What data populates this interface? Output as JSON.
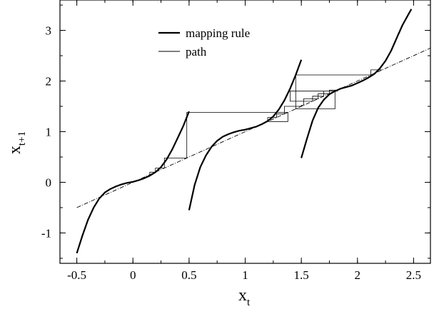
{
  "chart_data": {
    "type": "line",
    "xlabel": "x",
    "xlabel_sub": "t",
    "ylabel": "x",
    "ylabel_sub": "t+1",
    "xlim": [
      -0.65,
      2.65
    ],
    "ylim": [
      -1.6,
      3.6
    ],
    "xticks": [
      -0.5,
      0,
      0.5,
      1,
      1.5,
      2,
      2.5
    ],
    "xtick_labels": [
      "-0.5",
      "0",
      "0.5",
      "1",
      "1.5",
      "2",
      "2.5"
    ],
    "yticks": [
      -1,
      0,
      1,
      2,
      3
    ],
    "ytick_labels": [
      "-1",
      "0",
      "1",
      "2",
      "3"
    ],
    "grid": false,
    "legend_position": "top-center",
    "legend": [
      {
        "label": "mapping rule",
        "style": "thick"
      },
      {
        "label": "path",
        "style": "thin"
      }
    ],
    "series": [
      {
        "name": "mapping rule",
        "style": "thick",
        "branches": [
          {
            "x": [
              -0.5,
              -0.45,
              -0.4,
              -0.35,
              -0.3,
              -0.25,
              -0.2,
              -0.15,
              -0.1,
              -0.05,
              0.0,
              0.05,
              0.1,
              0.15,
              0.2,
              0.25,
              0.3,
              0.35,
              0.4,
              0.45,
              0.5
            ],
            "y": [
              -1.4,
              -1.05,
              -0.74,
              -0.5,
              -0.32,
              -0.2,
              -0.13,
              -0.08,
              -0.04,
              -0.01,
              0.01,
              0.04,
              0.08,
              0.13,
              0.2,
              0.3,
              0.45,
              0.65,
              0.88,
              1.12,
              1.4
            ]
          },
          {
            "x": [
              0.5,
              0.55,
              0.6,
              0.65,
              0.7,
              0.75,
              0.8,
              0.85,
              0.9,
              0.95,
              1.0,
              1.05,
              1.1,
              1.15,
              1.2,
              1.25,
              1.3,
              1.35,
              1.4,
              1.45,
              1.5
            ],
            "y": [
              -0.55,
              -0.05,
              0.3,
              0.53,
              0.7,
              0.82,
              0.9,
              0.95,
              0.99,
              1.02,
              1.04,
              1.07,
              1.1,
              1.15,
              1.21,
              1.3,
              1.44,
              1.62,
              1.85,
              2.12,
              2.42
            ]
          },
          {
            "x": [
              1.5,
              1.55,
              1.6,
              1.65,
              1.7,
              1.75,
              1.8,
              1.85,
              1.9,
              1.95,
              2.0,
              2.05,
              2.1,
              2.15,
              2.2,
              2.25,
              2.3,
              2.35,
              2.4,
              2.45,
              2.48
            ],
            "y": [
              0.48,
              0.86,
              1.22,
              1.47,
              1.63,
              1.74,
              1.8,
              1.85,
              1.88,
              1.91,
              1.96,
              2.01,
              2.07,
              2.14,
              2.25,
              2.4,
              2.6,
              2.85,
              3.1,
              3.3,
              3.42
            ]
          }
        ]
      },
      {
        "name": "diagonal",
        "style": "dashdot",
        "x": [
          -0.5,
          2.65
        ],
        "y": [
          -0.5,
          2.65
        ]
      },
      {
        "name": "path",
        "style": "thin",
        "x": [
          0.15,
          0.15,
          0.2,
          0.2,
          0.28,
          0.28,
          0.48,
          0.48,
          1.38,
          1.38,
          1.2,
          1.2,
          1.28,
          1.28,
          1.35,
          1.35,
          1.5,
          1.5,
          1.52,
          1.52,
          1.65,
          1.65,
          1.75,
          1.75,
          1.82,
          1.82,
          1.4,
          1.4,
          1.6,
          1.6,
          1.7,
          1.7,
          1.8,
          1.8,
          1.45,
          1.45,
          2.12,
          2.12,
          2.22,
          2.22
        ],
        "y": [
          0.15,
          0.2,
          0.2,
          0.28,
          0.28,
          0.48,
          0.48,
          1.38,
          1.38,
          1.2,
          1.2,
          1.28,
          1.28,
          1.35,
          1.35,
          1.5,
          1.5,
          1.52,
          1.52,
          1.65,
          1.65,
          1.75,
          1.75,
          1.82,
          1.82,
          1.8,
          1.8,
          1.6,
          1.6,
          1.7,
          1.7,
          1.8,
          1.8,
          1.45,
          1.45,
          2.12,
          2.12,
          2.22,
          2.22,
          2.22
        ]
      }
    ]
  }
}
